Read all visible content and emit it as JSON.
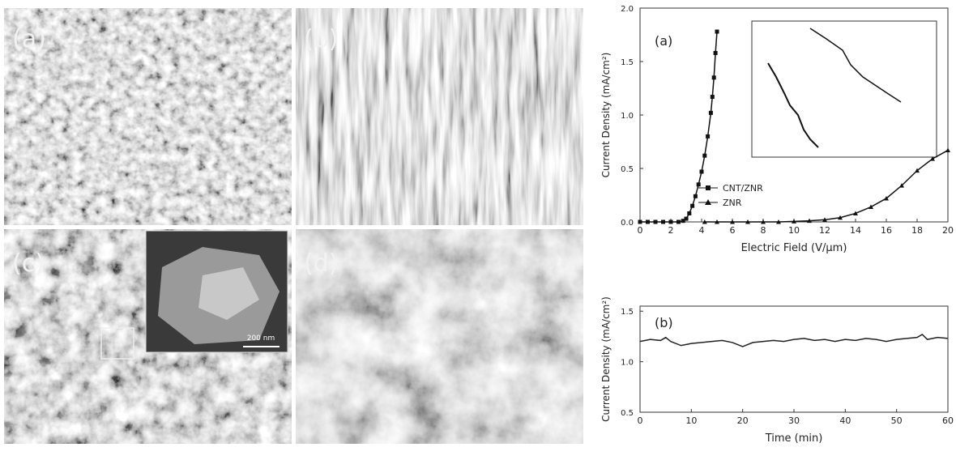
{
  "images": [
    {
      "label": "(a)"
    },
    {
      "label": "(b)"
    },
    {
      "label": "(c)",
      "scale_bar": "200 nm"
    },
    {
      "label": "(d)"
    }
  ],
  "chart_data": [
    {
      "type": "line",
      "title": "(a)",
      "x_label": "Electric Field (V/μm)",
      "y_label": "Current Density (mA/cm²)",
      "xlim": [
        0,
        20
      ],
      "xticks": [
        0,
        2,
        4,
        6,
        8,
        10,
        12,
        14,
        16,
        18,
        20
      ],
      "ylim": [
        0,
        2.0
      ],
      "yticks": [
        {
          "value": 0,
          "label": "0.0"
        },
        0.5,
        {
          "value": 1,
          "label": "1.0"
        },
        1.5,
        {
          "value": 2,
          "label": "2.0"
        }
      ],
      "legend": "left",
      "series": [
        {
          "name": "CNT/ZNR",
          "color": "#111111",
          "marker": "square",
          "x": [
            0,
            0.5,
            1,
            1.5,
            2,
            2.5,
            2.8,
            3.0,
            3.2,
            3.4,
            3.6,
            3.8,
            4.0,
            4.2,
            4.4,
            4.6,
            4.7,
            4.8,
            4.9,
            5.0
          ],
          "values": [
            0,
            0,
            0,
            0,
            0,
            0,
            0.01,
            0.03,
            0.08,
            0.15,
            0.24,
            0.35,
            0.47,
            0.62,
            0.8,
            1.02,
            1.17,
            1.35,
            1.58,
            1.78
          ]
        },
        {
          "name": "ZNR",
          "color": "#111111",
          "marker": "triangle",
          "x": [
            4.2,
            5,
            6,
            7,
            8,
            9,
            10,
            11,
            12,
            13,
            14,
            15,
            16,
            17,
            18,
            19,
            20
          ],
          "values": [
            0,
            0,
            0,
            0,
            0,
            0,
            0.005,
            0.01,
            0.02,
            0.04,
            0.08,
            0.14,
            0.22,
            0.34,
            0.48,
            0.59,
            0.67
          ]
        }
      ]
    },
    {
      "type": "line",
      "title": "(b)",
      "x_label": "Time (min)",
      "y_label": "Current Density (mA/cm²)",
      "xlim": [
        0,
        60
      ],
      "xticks": [
        0,
        10,
        20,
        30,
        40,
        50,
        60
      ],
      "ylim": [
        0.5,
        1.55
      ],
      "yticks": [
        0.5,
        {
          "value": 1,
          "label": "1.0"
        },
        1.5
      ],
      "series": [
        {
          "name": null,
          "color": "#222222",
          "marker": "none",
          "x": [
            0,
            2,
            4,
            5,
            6,
            8,
            10,
            12,
            14,
            16,
            18,
            20,
            22,
            24,
            26,
            28,
            30,
            32,
            34,
            36,
            38,
            40,
            42,
            44,
            46,
            48,
            50,
            52,
            54,
            55,
            56,
            58,
            60
          ],
          "values": [
            1.2,
            1.22,
            1.21,
            1.24,
            1.2,
            1.16,
            1.18,
            1.19,
            1.2,
            1.21,
            1.19,
            1.15,
            1.19,
            1.2,
            1.21,
            1.2,
            1.22,
            1.23,
            1.21,
            1.22,
            1.2,
            1.22,
            1.21,
            1.23,
            1.22,
            1.2,
            1.22,
            1.23,
            1.24,
            1.27,
            1.22,
            1.24,
            1.23
          ]
        }
      ]
    }
  ]
}
